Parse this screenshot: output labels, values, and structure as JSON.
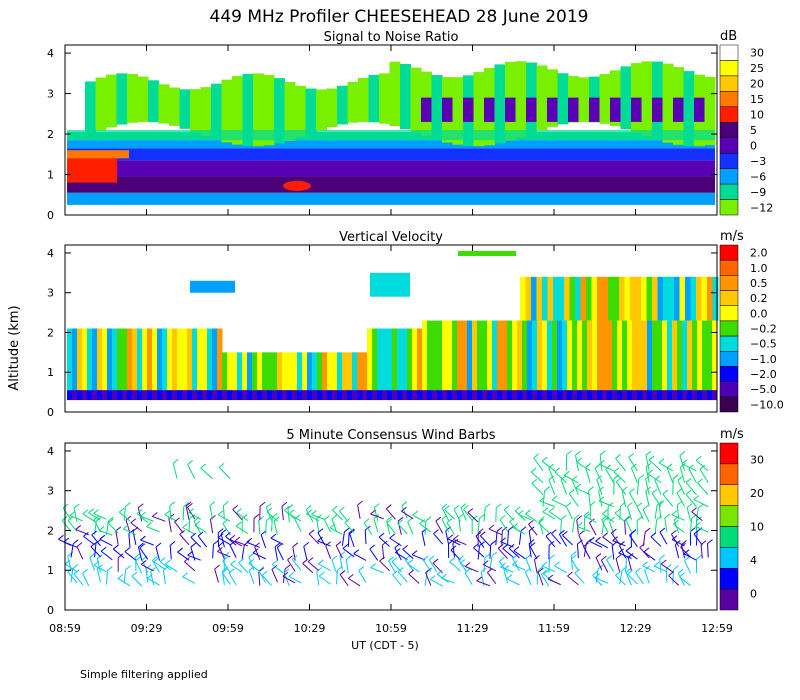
{
  "title": "449 MHz Profiler CHEESEHEAD 28 June 2019",
  "ylabel": "Altitude (km)",
  "xlabel": "UT  (CDT - 5)",
  "footer": "Simple filtering applied",
  "chart_data": {
    "type": "heatmap",
    "x_ticks": [
      "08:59",
      "09:29",
      "09:59",
      "10:29",
      "10:59",
      "11:29",
      "11:59",
      "12:29",
      "12:59"
    ],
    "y_ticks": [
      "0",
      "1",
      "2",
      "3",
      "4"
    ],
    "ylim": [
      0,
      4.2
    ],
    "panels": [
      {
        "title": "Signal to Noise Ratio",
        "unit": "dB",
        "colorbar": {
          "labels": [
            "30",
            "25",
            "20",
            "15",
            "10",
            "5",
            "0",
            "−3",
            "−6",
            "−9",
            "−12"
          ],
          "colors": [
            "#ffffff",
            "#ffff00",
            "#ffc800",
            "#ff7800",
            "#ff1e00",
            "#4b0078",
            "#5a00b4",
            "#1432ff",
            "#00a0ff",
            "#00dc96",
            "#78f000"
          ]
        }
      },
      {
        "title": "Vertical Velocity",
        "unit": "m/s",
        "colorbar": {
          "labels": [
            "2.0",
            "1.0",
            "0.5",
            "0.2",
            "0.0",
            "−0.2",
            "−0.5",
            "−1.0",
            "−2.0",
            "−5.0",
            "−10.0"
          ],
          "colors": [
            "#ff0000",
            "#ff6400",
            "#ff9600",
            "#ffc800",
            "#ffff00",
            "#3cdc00",
            "#00dcdc",
            "#00a0ff",
            "#0000ff",
            "#5000b4",
            "#3c0050"
          ]
        }
      },
      {
        "title": "5 Minute Consensus Wind Barbs",
        "unit": "m/s",
        "colorbar": {
          "labels": [
            "30",
            "20",
            "10",
            "4",
            "0"
          ],
          "colors": [
            "#ff0000",
            "#ff6400",
            "#ffc800",
            "#78e600",
            "#00dc78",
            "#00c8ff",
            "#0000ff",
            "#5a00a0"
          ]
        }
      }
    ]
  }
}
